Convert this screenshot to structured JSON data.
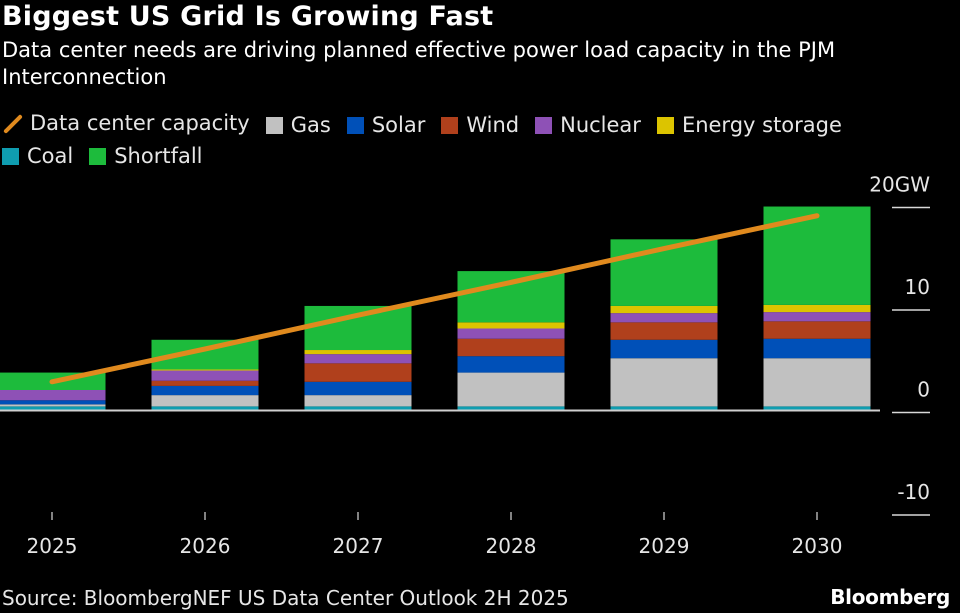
{
  "header": {
    "title": "Biggest US Grid Is Growing Fast",
    "subtitle": "Data center needs are driving planned effective power load capacity in the PJM Interconnection"
  },
  "legend": [
    {
      "key": "datacenter",
      "label": "Data center capacity",
      "kind": "line",
      "color": "#e08a1e"
    },
    {
      "key": "gas",
      "label": "Gas",
      "kind": "box",
      "color": "#c1c1c1"
    },
    {
      "key": "solar",
      "label": "Solar",
      "kind": "box",
      "color": "#0050b8"
    },
    {
      "key": "wind",
      "label": "Wind",
      "kind": "box",
      "color": "#b0401c"
    },
    {
      "key": "nuclear",
      "label": "Nuclear",
      "kind": "box",
      "color": "#8e51b6"
    },
    {
      "key": "storage",
      "label": "Energy storage",
      "kind": "box",
      "color": "#dcc400"
    },
    {
      "key": "coal",
      "label": "Coal",
      "kind": "box",
      "color": "#0f9db0"
    },
    {
      "key": "shortfall",
      "label": "Shortfall",
      "kind": "box",
      "color": "#1dbb3c"
    }
  ],
  "chart_data": {
    "type": "bar",
    "stacked": true,
    "title": "Biggest US Grid Is Growing Fast",
    "subtitle": "Data center needs are driving planned effective power load capacity in the PJM Interconnection",
    "xlabel": "",
    "ylabel": "",
    "y_unit": "GW",
    "ylim": [
      -12,
      21
    ],
    "y_ticks": [
      {
        "value": 20,
        "label": "20GW"
      },
      {
        "value": 10,
        "label": "10"
      },
      {
        "value": 0,
        "label": "0"
      },
      {
        "value": -10,
        "label": "-10"
      }
    ],
    "y_axis_position": "right",
    "grid": false,
    "legend_position": "top-left",
    "categories": [
      "2025",
      "2026",
      "2027",
      "2028",
      "2029",
      "2030"
    ],
    "series": [
      {
        "name": "Coal",
        "key": "coal",
        "color": "#0f9db0",
        "values": [
          0.4,
          0.4,
          0.4,
          0.4,
          0.4,
          0.4
        ]
      },
      {
        "name": "Gas",
        "key": "gas",
        "color": "#c1c1c1",
        "values": [
          0.2,
          1.1,
          1.1,
          3.3,
          4.7,
          4.7
        ]
      },
      {
        "name": "Solar",
        "key": "solar",
        "color": "#0050b8",
        "values": [
          0.4,
          0.9,
          1.3,
          1.6,
          1.8,
          1.9
        ]
      },
      {
        "name": "Wind",
        "key": "wind",
        "color": "#b0401c",
        "values": [
          0.0,
          0.5,
          1.8,
          1.7,
          1.7,
          1.7
        ]
      },
      {
        "name": "Nuclear",
        "key": "nuclear",
        "color": "#8e51b6",
        "values": [
          1.0,
          1.0,
          0.9,
          1.0,
          0.9,
          0.9
        ]
      },
      {
        "name": "Energy storage",
        "key": "storage",
        "color": "#dcc400",
        "values": [
          0.0,
          0.1,
          0.4,
          0.6,
          0.7,
          0.7
        ]
      },
      {
        "name": "Shortfall",
        "key": "shortfall",
        "color": "#1dbb3c",
        "values": [
          1.7,
          2.9,
          4.3,
          5.0,
          6.5,
          9.6
        ]
      }
    ],
    "line_series": {
      "name": "Data center capacity",
      "key": "datacenter",
      "color": "#e08a1e",
      "values": [
        2.8,
        6.0,
        9.3,
        12.5,
        15.8,
        19.0
      ]
    }
  },
  "footer": {
    "source": "Source: BloombergNEF US Data Center Outlook 2H 2025",
    "brand": "Bloomberg"
  }
}
